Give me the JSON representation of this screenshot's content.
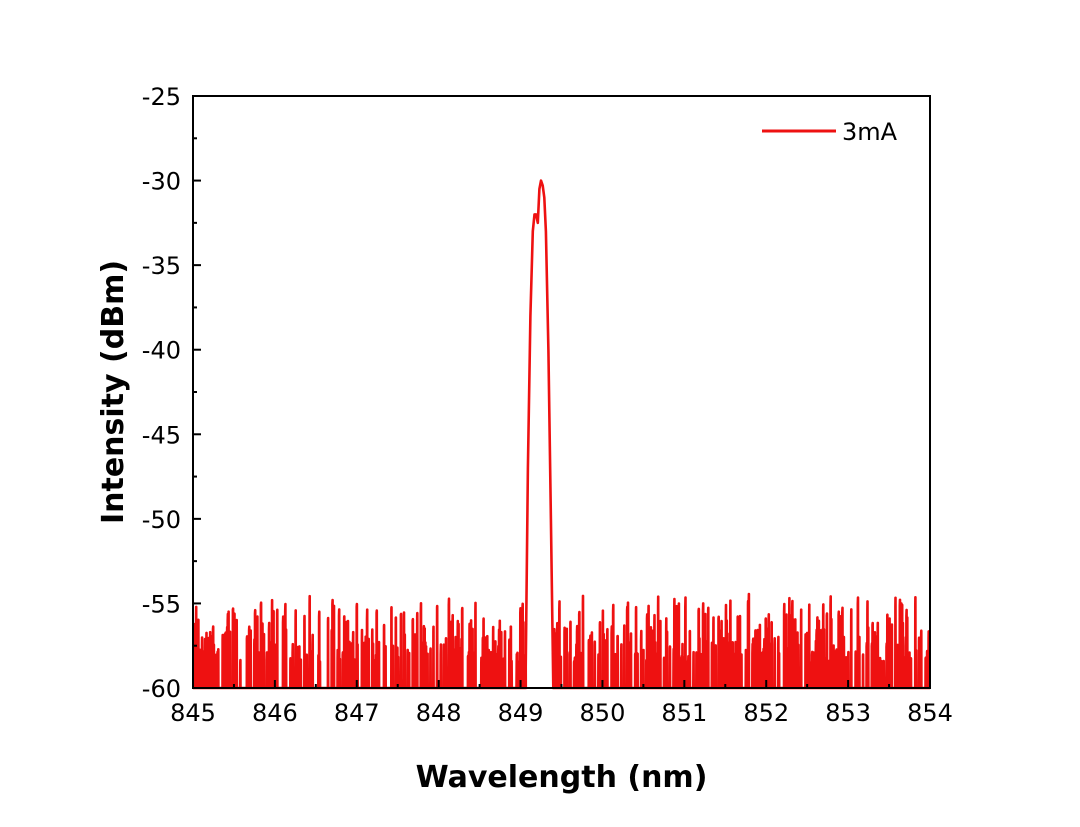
{
  "chart_data": {
    "type": "line",
    "title": "",
    "xlabel": "Wavelength (nm)",
    "ylabel": "Intensity (dBm)",
    "xlim": [
      845,
      854
    ],
    "ylim": [
      -60,
      -25
    ],
    "xticks": [
      845,
      846,
      847,
      848,
      849,
      850,
      851,
      852,
      853,
      854
    ],
    "yticks": [
      -60,
      -55,
      -50,
      -45,
      -40,
      -35,
      -30,
      -25
    ],
    "grid": false,
    "legend_position": "top-right",
    "series": [
      {
        "name": "3mA",
        "color": "#ee1111",
        "noise_floor_dbm": -60,
        "noise_peak_range_dbm": [
          -58.5,
          -55
        ],
        "peak": {
          "x": [
            849.06,
            849.09,
            849.12,
            849.15,
            849.17,
            849.19,
            849.21,
            849.23,
            849.25,
            849.27,
            849.29,
            849.31,
            849.34,
            849.37,
            849.4
          ],
          "y": [
            -60,
            -47,
            -38,
            -33,
            -32,
            -32,
            -32.5,
            -30.5,
            -30,
            -30.3,
            -31,
            -33,
            -40,
            -50,
            -60
          ]
        }
      }
    ]
  }
}
